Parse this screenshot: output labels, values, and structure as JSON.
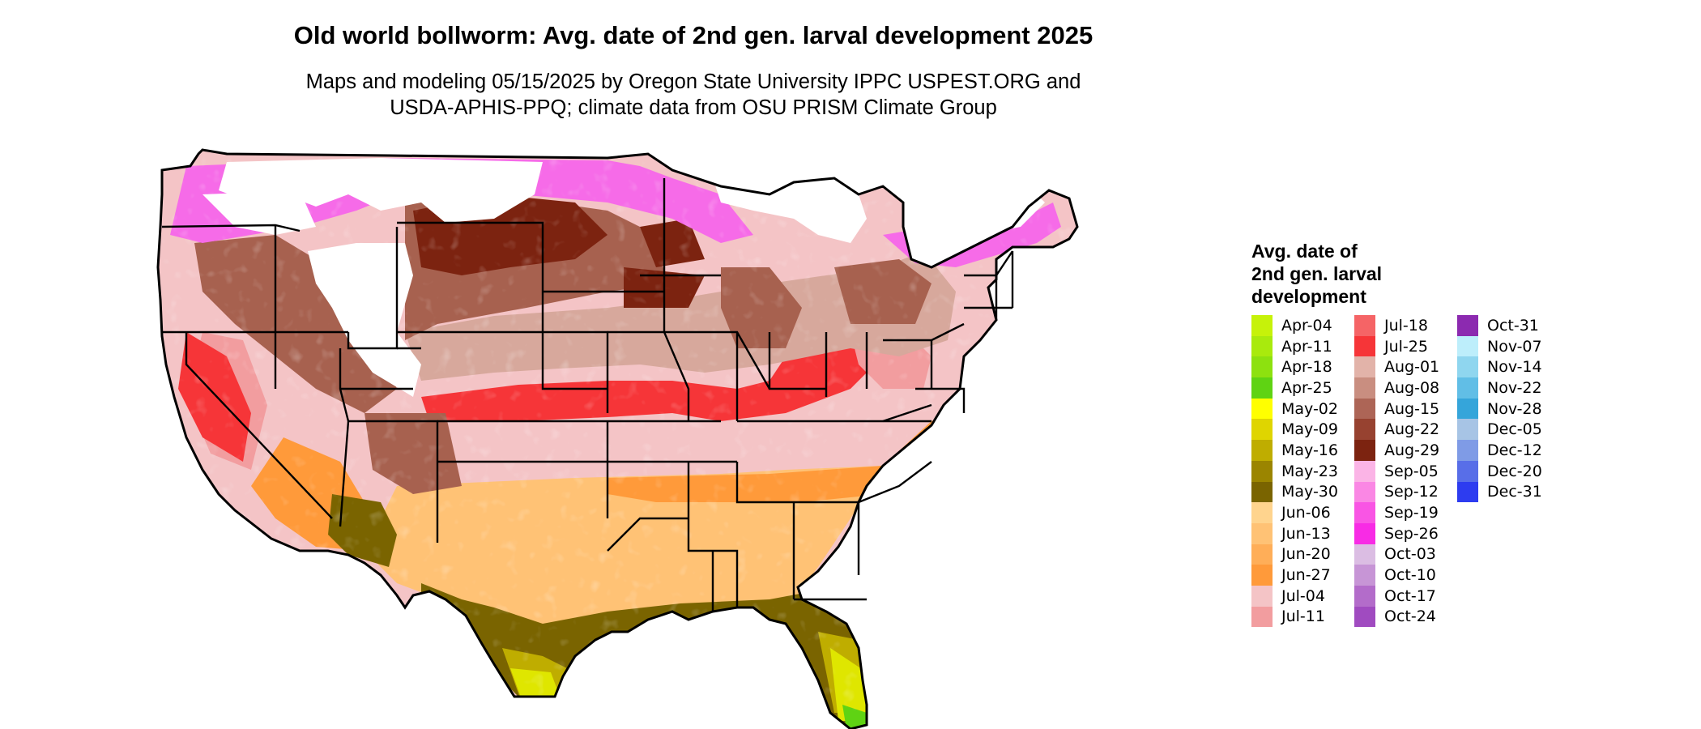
{
  "title": "Old world bollworm: Avg. date of 2nd gen. larval development 2025",
  "subtitle_line1": "Maps and modeling 05/15/2025 by Oregon State University IPPC USPEST.ORG and",
  "subtitle_line2": "USDA-APHIS-PPQ; climate data from OSU PRISM Climate Group",
  "legend": {
    "title": "Avg. date of\n2nd gen. larval\ndevelopment",
    "columns": [
      [
        {
          "label": "Apr-04",
          "color": "#c6f20a"
        },
        {
          "label": "Apr-11",
          "color": "#a9ea0d"
        },
        {
          "label": "Apr-18",
          "color": "#8de10f"
        },
        {
          "label": "Apr-25",
          "color": "#5fd313"
        },
        {
          "label": "May-02",
          "color": "#ffff00"
        },
        {
          "label": "May-09",
          "color": "#dfd500"
        },
        {
          "label": "May-16",
          "color": "#bfad00"
        },
        {
          "label": "May-23",
          "color": "#9b8500"
        },
        {
          "label": "May-30",
          "color": "#7a6400"
        },
        {
          "label": "Jun-06",
          "color": "#ffd48e"
        },
        {
          "label": "Jun-13",
          "color": "#ffc275"
        },
        {
          "label": "Jun-20",
          "color": "#ffae58"
        },
        {
          "label": "Jun-27",
          "color": "#ff9a3a"
        },
        {
          "label": "Jul-04",
          "color": "#f4c4c6"
        },
        {
          "label": "Jul-11",
          "color": "#f29d9f"
        }
      ],
      [
        {
          "label": "Jul-18",
          "color": "#f56466"
        },
        {
          "label": "Jul-25",
          "color": "#f63538"
        },
        {
          "label": "Aug-01",
          "color": "#e2b3a9"
        },
        {
          "label": "Aug-08",
          "color": "#c98e80"
        },
        {
          "label": "Aug-15",
          "color": "#ad6556"
        },
        {
          "label": "Aug-22",
          "color": "#974230"
        },
        {
          "label": "Aug-29",
          "color": "#7c2310"
        },
        {
          "label": "Sep-05",
          "color": "#fbb4e6"
        },
        {
          "label": "Sep-12",
          "color": "#fa87e4"
        },
        {
          "label": "Sep-19",
          "color": "#f955e4"
        },
        {
          "label": "Sep-26",
          "color": "#f82be5"
        },
        {
          "label": "Oct-03",
          "color": "#dbbde3"
        },
        {
          "label": "Oct-10",
          "color": "#c795d6"
        },
        {
          "label": "Oct-17",
          "color": "#b36cca"
        },
        {
          "label": "Oct-24",
          "color": "#a04bc0"
        }
      ],
      [
        {
          "label": "Oct-31",
          "color": "#8c2ab0"
        },
        {
          "label": "Nov-07",
          "color": "#bdeefb"
        },
        {
          "label": "Nov-14",
          "color": "#8fd6ef"
        },
        {
          "label": "Nov-22",
          "color": "#61bee6"
        },
        {
          "label": "Nov-28",
          "color": "#35a5da"
        },
        {
          "label": "Dec-05",
          "color": "#a7c4e5"
        },
        {
          "label": "Dec-12",
          "color": "#7f9be6"
        },
        {
          "label": "Dec-20",
          "color": "#586ee8"
        },
        {
          "label": "Dec-31",
          "color": "#2d3cf0"
        }
      ]
    ]
  },
  "map": {
    "colors": {
      "white_zone": "#ffffff",
      "magenta": "#f66be8",
      "brown_dark": "#7c2310",
      "brown_mid": "#a7614f",
      "brown_light": "#d7a89c",
      "pink_light": "#f4c4c6",
      "red": "#f63538",
      "salmon": "#f29d9f",
      "orange": "#ff9a3a",
      "orange_light": "#ffc275",
      "olive": "#7a6400",
      "olive_mid": "#bfad00",
      "yellow": "#dfe600",
      "green": "#5fd313",
      "border": "#000000"
    }
  }
}
